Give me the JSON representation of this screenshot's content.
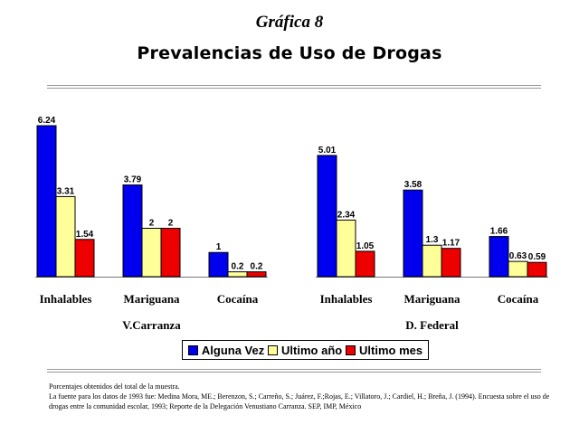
{
  "supertitle": "Gráfica 8",
  "chart_data": {
    "type": "bar",
    "title": "Prevalencias de Uso de Drogas",
    "series_names": [
      "Alguna Vez",
      "Ultimo año",
      "Ultimo mes"
    ],
    "colors": [
      "#0000ee",
      "#ffff99",
      "#ee0000"
    ],
    "ylim": [
      0,
      6.24
    ],
    "grid": false,
    "legend_position": "bottom-center",
    "groups": [
      {
        "name": "V.Carranza",
        "categories": [
          "Inhalables",
          "Mariguana",
          "Cocaína"
        ],
        "series": [
          {
            "name": "Alguna Vez",
            "values": [
              6.24,
              3.79,
              1
            ]
          },
          {
            "name": "Ultimo año",
            "values": [
              3.31,
              2,
              0.2
            ]
          },
          {
            "name": "Ultimo mes",
            "values": [
              1.54,
              2,
              0.2
            ]
          }
        ],
        "labels": [
          [
            "6.24",
            "3.79",
            "1"
          ],
          [
            "3.31",
            "2",
            "0.2"
          ],
          [
            "1.54",
            "2",
            "0.2"
          ]
        ]
      },
      {
        "name": "D. Federal",
        "categories": [
          "Inhalables",
          "Mariguana",
          "Cocaína"
        ],
        "series": [
          {
            "name": "Alguna Vez",
            "values": [
              5.01,
              3.58,
              1.66
            ]
          },
          {
            "name": "Ultimo año",
            "values": [
              2.34,
              1.3,
              0.63
            ]
          },
          {
            "name": "Ultimo mes",
            "values": [
              1.05,
              1.17,
              0.59
            ]
          }
        ],
        "labels": [
          [
            "5.01",
            "3.58",
            "1.66"
          ],
          [
            "2.34",
            "1.3",
            "0.63"
          ],
          [
            "1.05",
            "1.17",
            "0.59"
          ]
        ]
      }
    ]
  },
  "footnote": {
    "line1": "Porcentajes obtenidos del total de la muestra.",
    "line2": "La fuente para los datos de 1993 fue: Medina Mora, ME.; Berenzon, S.; Carreño, S.; Juárez, F.;Rojas, E.; Villatoro, J.; Cardiel, H.; Breña, J. (1994). Encuesta sobre el uso de drogas entre la comunidad escolar, 1993; Reporte de la Delegación Venustiano Carranza. SEP, IMP, México"
  }
}
